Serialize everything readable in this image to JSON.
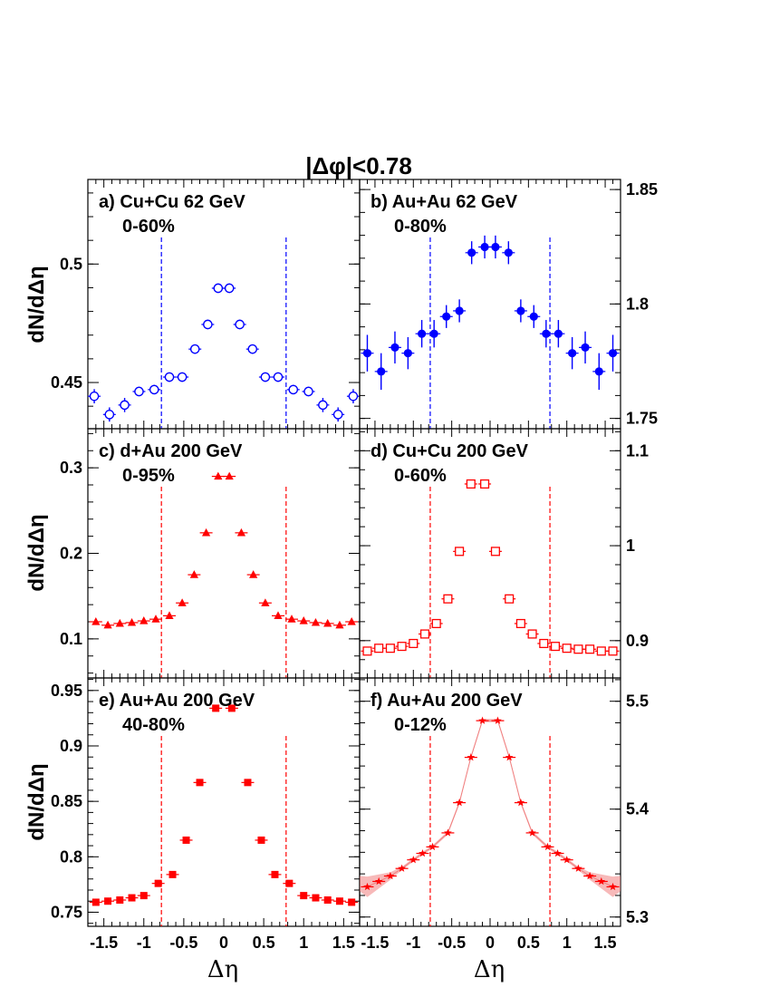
{
  "figure": {
    "title": "|Δφ|<0.78",
    "y_axis_label": "dN/dΔη",
    "x_axis_label": "Δη",
    "x_tick_labels": [
      "-1.5",
      "-1",
      "-0.5",
      "0",
      "0.5",
      "1",
      "1.5"
    ],
    "x_tick_values": [
      -1.5,
      -1,
      -0.5,
      0,
      0.5,
      1,
      1.5
    ]
  },
  "chart_data": [
    {
      "type": "scatter",
      "panel": "a",
      "label": "a) Cu+Cu 62 GeV",
      "centrality": "0-60%",
      "y_axis_side": "left",
      "marker": "open-circle",
      "color": "#0000ff",
      "xlim": [
        -1.7,
        1.7
      ],
      "ylim": [
        0.4305,
        0.5357
      ],
      "y_ticks": [
        0.45,
        0.5
      ],
      "y_tick_labels": [
        "0.45",
        "0.5"
      ],
      "dashed_lines_x": [
        -0.78,
        0.78
      ],
      "x": [
        -1.62,
        -1.43,
        -1.24,
        -1.06,
        -0.87,
        -0.68,
        -0.52,
        -0.36,
        -0.2,
        -0.07,
        0.07,
        0.2,
        0.36,
        0.52,
        0.68,
        0.87,
        1.06,
        1.24,
        1.43,
        1.62
      ],
      "y": [
        0.4442,
        0.4365,
        0.4405,
        0.4462,
        0.447,
        0.4523,
        0.4523,
        0.4641,
        0.4745,
        0.4898,
        0.4898,
        0.4745,
        0.4641,
        0.4523,
        0.4523,
        0.447,
        0.4462,
        0.4405,
        0.4365,
        0.4442
      ],
      "y_err": [
        0.003,
        0.003,
        0.003,
        0.002,
        0.002,
        0.002,
        0.002,
        0.002,
        0.002,
        0.002,
        0.002,
        0.002,
        0.002,
        0.002,
        0.002,
        0.002,
        0.002,
        0.003,
        0.003,
        0.003
      ]
    },
    {
      "type": "scatter",
      "panel": "b",
      "label": "b) Au+Au 62 GeV",
      "centrality": "0-80%",
      "y_axis_side": "right",
      "marker": "filled-circle",
      "color": "#0000ff",
      "xlim": [
        -1.7,
        1.7
      ],
      "ylim": [
        1.7455,
        1.8544
      ],
      "y_ticks": [
        1.75,
        1.8,
        1.85
      ],
      "y_tick_labels": [
        "1.75",
        "1.8",
        "1.85"
      ],
      "dashed_lines_x": [
        -0.78,
        0.78
      ],
      "x": [
        -1.6,
        -1.42,
        -1.24,
        -1.07,
        -0.89,
        -0.73,
        -0.57,
        -0.4,
        -0.24,
        -0.07,
        0.07,
        0.24,
        0.4,
        0.57,
        0.73,
        0.89,
        1.07,
        1.24,
        1.42,
        1.6
      ],
      "y": [
        1.7785,
        1.7705,
        1.781,
        1.7785,
        1.787,
        1.787,
        1.7945,
        1.797,
        1.8224,
        1.8249,
        1.8249,
        1.8224,
        1.797,
        1.7945,
        1.787,
        1.787,
        1.7785,
        1.781,
        1.7705,
        1.7785
      ],
      "y_err": [
        0.008,
        0.008,
        0.007,
        0.007,
        0.006,
        0.006,
        0.005,
        0.005,
        0.005,
        0.005,
        0.005,
        0.005,
        0.005,
        0.005,
        0.006,
        0.006,
        0.007,
        0.007,
        0.008,
        0.008
      ]
    },
    {
      "type": "scatter",
      "panel": "c",
      "label": "c) d+Au 200 GeV",
      "centrality": "0-95%",
      "y_axis_side": "left",
      "marker": "filled-triangle",
      "color": "#ff0000",
      "xlim": [
        -1.7,
        1.7
      ],
      "ylim": [
        0.0543,
        0.3457
      ],
      "y_ticks": [
        0.1,
        0.2,
        0.3
      ],
      "y_tick_labels": [
        "0.1",
        "0.2",
        "0.3"
      ],
      "dashed_lines_x": [
        -0.78,
        0.78
      ],
      "x": [
        -1.6,
        -1.45,
        -1.3,
        -1.15,
        -1.0,
        -0.85,
        -0.68,
        -0.52,
        -0.37,
        -0.22,
        -0.07,
        0.07,
        0.22,
        0.37,
        0.52,
        0.68,
        0.85,
        1.0,
        1.15,
        1.3,
        1.45,
        1.6
      ],
      "y": [
        0.12,
        0.116,
        0.118,
        0.119,
        0.121,
        0.123,
        0.127,
        0.142,
        0.175,
        0.224,
        0.29,
        0.29,
        0.224,
        0.175,
        0.142,
        0.127,
        0.123,
        0.121,
        0.119,
        0.118,
        0.116,
        0.12
      ],
      "y_err": [
        0.002,
        0.002,
        0.002,
        0.002,
        0.002,
        0.002,
        0.002,
        0.002,
        0.002,
        0.002,
        0.002,
        0.002,
        0.002,
        0.002,
        0.002,
        0.002,
        0.002,
        0.002,
        0.002,
        0.002,
        0.002,
        0.002
      ]
    },
    {
      "type": "scatter",
      "panel": "d",
      "label": "d) Cu+Cu 200 GeV",
      "centrality": "0-60%",
      "y_axis_side": "right",
      "marker": "open-square",
      "color": "#ff0000",
      "xlim": [
        -1.7,
        1.7
      ],
      "ylim": [
        0.8607,
        1.1232
      ],
      "y_ticks": [
        0.9,
        1.0,
        1.1
      ],
      "y_tick_labels": [
        "0.9",
        "1",
        "1.1"
      ],
      "dashed_lines_x": [
        -0.78,
        0.78
      ],
      "x": [
        -1.6,
        -1.45,
        -1.3,
        -1.15,
        -1.0,
        -0.85,
        -0.7,
        -0.55,
        -0.4,
        -0.25,
        -0.07,
        0.07,
        0.25,
        0.4,
        0.55,
        0.7,
        0.85,
        1.0,
        1.15,
        1.3,
        1.45,
        1.6
      ],
      "y": [
        0.889,
        0.892,
        0.892,
        0.894,
        0.897,
        0.907,
        0.918,
        0.944,
        0.994,
        1.065,
        1.065,
        0.994,
        0.944,
        0.918,
        0.907,
        0.897,
        0.894,
        0.892,
        0.891,
        0.891,
        0.889,
        0.889
      ],
      "y_err": [
        0.002,
        0.002,
        0.002,
        0.002,
        0.002,
        0.002,
        0.002,
        0.002,
        0.002,
        0.002,
        0.002,
        0.002,
        0.002,
        0.002,
        0.002,
        0.002,
        0.002,
        0.002,
        0.002,
        0.002,
        0.002,
        0.002
      ]
    },
    {
      "type": "scatter",
      "panel": "e",
      "label": "e) Au+Au 200 GeV",
      "centrality": "40-80%",
      "y_axis_side": "left",
      "marker": "filled-square",
      "color": "#ff0000",
      "xlim": [
        -1.7,
        1.7
      ],
      "ylim": [
        0.7373,
        0.9613
      ],
      "y_ticks": [
        0.75,
        0.8,
        0.85,
        0.9,
        0.95
      ],
      "y_tick_labels": [
        "0.75",
        "0.8",
        "0.85",
        "0.9",
        "0.95"
      ],
      "dashed_lines_x": [
        -0.78,
        0.78
      ],
      "x": [
        -1.6,
        -1.45,
        -1.3,
        -1.15,
        -1.0,
        -0.82,
        -0.64,
        -0.47,
        -0.3,
        -0.1,
        0.1,
        0.3,
        0.47,
        0.64,
        0.82,
        1.0,
        1.15,
        1.3,
        1.45,
        1.6
      ],
      "y": [
        0.759,
        0.76,
        0.761,
        0.763,
        0.765,
        0.776,
        0.784,
        0.815,
        0.867,
        0.934,
        0.934,
        0.867,
        0.815,
        0.784,
        0.776,
        0.765,
        0.763,
        0.761,
        0.76,
        0.759
      ],
      "y_err": [
        0.001,
        0.001,
        0.001,
        0.001,
        0.001,
        0.001,
        0.001,
        0.001,
        0.001,
        0.001,
        0.001,
        0.001,
        0.001,
        0.001,
        0.001,
        0.001,
        0.001,
        0.001,
        0.001,
        0.001
      ]
    },
    {
      "type": "scatter",
      "panel": "f",
      "label": "f) Au+Au 200 GeV",
      "centrality": "0-12%",
      "y_axis_side": "right",
      "marker": "filled-star",
      "color": "#ff0000",
      "band_color": "#f08080",
      "xlim": [
        -1.7,
        1.7
      ],
      "ylim": [
        5.2914,
        5.5216
      ],
      "y_ticks": [
        5.3,
        5.4,
        5.5
      ],
      "y_tick_labels": [
        "5.3",
        "5.4",
        "5.5"
      ],
      "dashed_lines_x": [
        -0.78,
        0.78
      ],
      "x": [
        -1.6,
        -1.45,
        -1.3,
        -1.15,
        -1.0,
        -0.88,
        -0.75,
        -0.55,
        -0.4,
        -0.25,
        -0.1,
        0.1,
        0.25,
        0.4,
        0.55,
        0.75,
        0.88,
        1.0,
        1.15,
        1.3,
        1.45,
        1.6
      ],
      "y": [
        5.328,
        5.333,
        5.338,
        5.345,
        5.353,
        5.359,
        5.365,
        5.378,
        5.406,
        5.448,
        5.482,
        5.482,
        5.448,
        5.406,
        5.378,
        5.365,
        5.359,
        5.353,
        5.345,
        5.338,
        5.333,
        5.328
      ],
      "y_err": [
        0.001,
        0.001,
        0.001,
        0.001,
        0.001,
        0.001,
        0.001,
        0.001,
        0.001,
        0.001,
        0.001,
        0.001,
        0.001,
        0.001,
        0.001,
        0.001,
        0.001,
        0.001,
        0.001,
        0.001,
        0.001,
        0.001
      ]
    }
  ]
}
